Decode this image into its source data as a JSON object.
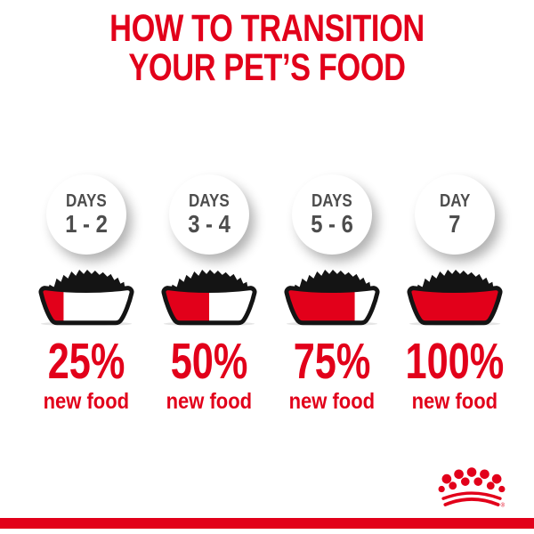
{
  "title": {
    "line1": "HOW TO TRANSITION",
    "line2": "YOUR PET’S FOOD"
  },
  "steps": [
    {
      "days_label": "DAYS",
      "days_range": "1 - 2",
      "percent": "25%",
      "caption": "new food",
      "fill_percent": 25
    },
    {
      "days_label": "DAYS",
      "days_range": "3 - 4",
      "percent": "50%",
      "caption": "new food",
      "fill_percent": 50
    },
    {
      "days_label": "DAYS",
      "days_range": "5 - 6",
      "percent": "75%",
      "caption": "new food",
      "fill_percent": 75
    },
    {
      "days_label": "DAY",
      "days_range": "7",
      "percent": "100%",
      "caption": "new food",
      "fill_percent": 100
    }
  ],
  "footer": {
    "registered_mark": "®"
  },
  "icons": {
    "bowl": "pet-food-bowl-icon",
    "brand_logo": "royal-canin-crown-icon"
  },
  "colors": {
    "brand_red": "#e2001a",
    "label_gray": "#4d4d4d",
    "bowl_black": "#141414",
    "background": "#ffffff"
  },
  "chart_data": {
    "type": "table",
    "title": "HOW TO TRANSITION YOUR PET’S FOOD",
    "categories": [
      "Days 1 - 2",
      "Days 3 - 4",
      "Days 5 - 6",
      "Day 7"
    ],
    "series": [
      {
        "name": "new food share of bowl (%)",
        "values": [
          25,
          50,
          75,
          100
        ]
      }
    ]
  }
}
